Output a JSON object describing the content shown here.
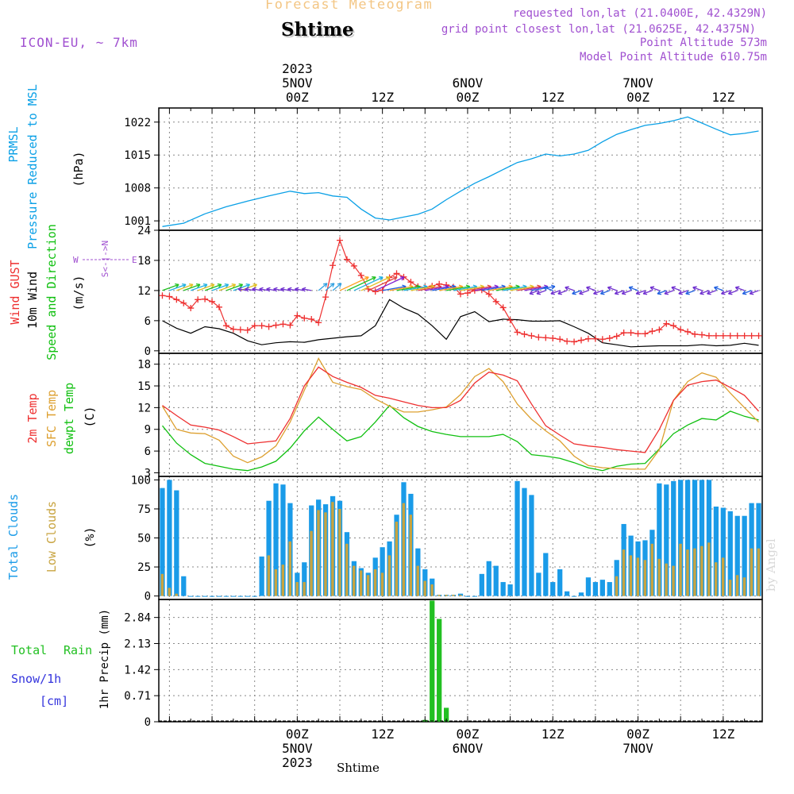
{
  "header": {
    "title": "Forecast Meteogram",
    "location": "Shtime",
    "model": "ICON-EU, ~ 7km",
    "requested": "requested lon,lat (21.0400E, 42.4329N)",
    "grid_point": "grid point closest lon,lat (21.0625E, 42.4375N)",
    "point_altitude": "Point Altitude 573m",
    "model_altitude": "Model Point Altitude 610.75m",
    "watermark": "by Angel",
    "bottom_label": "Shtime"
  },
  "time_axis": {
    "top_labels": [
      {
        "h": 0,
        "lines": [
          "2023",
          "5NOV",
          "00Z"
        ]
      },
      {
        "h": 12,
        "lines": [
          "12Z"
        ]
      },
      {
        "h": 24,
        "lines": [
          "6NOV",
          "00Z"
        ]
      },
      {
        "h": 36,
        "lines": [
          "12Z"
        ]
      },
      {
        "h": 48,
        "lines": [
          "7NOV",
          "00Z"
        ]
      },
      {
        "h": 60,
        "lines": [
          "12Z"
        ]
      }
    ],
    "bottom_labels": [
      {
        "h": 0,
        "lines": [
          "00Z",
          "5NOV",
          "2023"
        ]
      },
      {
        "h": 12,
        "lines": [
          "12Z"
        ]
      },
      {
        "h": 24,
        "lines": [
          "00Z",
          "6NOV"
        ]
      },
      {
        "h": 36,
        "lines": [
          "12Z"
        ]
      },
      {
        "h": 48,
        "lines": [
          "00Z",
          "7NOV"
        ]
      },
      {
        "h": 60,
        "lines": [
          "12Z"
        ]
      }
    ]
  },
  "panel_labels": {
    "pressure": {
      "l1": "PRMSL",
      "l2": "Pressure Reduced to MSL",
      "unit": "(hPa)"
    },
    "wind": {
      "gust": "Wind GUST",
      "wind10m": "10m Wind",
      "speed_dir": "Speed and Direction",
      "unit": "(m/s)",
      "compass_ns": "S<-|->N",
      "compass_w": "W",
      "compass_e": "E"
    },
    "temp": {
      "t2m": "2m Temp",
      "sfc": "SFC Temp",
      "dewpt": "dewpt Temp",
      "unit": "(C)"
    },
    "clouds": {
      "total": "Total Clouds",
      "low": "Low Clouds",
      "unit": "(%)"
    },
    "precip": {
      "rain": "Total Rain",
      "snow": "Snow/1h",
      "cm": "[cm]",
      "ylabel": "1hr Precip (mm)"
    }
  },
  "colors": {
    "pressure": "#0aa0e6",
    "gust": "#ee3030",
    "wind": "#000000",
    "t2m": "#ee3030",
    "sfc": "#dda030",
    "dewpt": "#10c010",
    "total_cloud": "#1a9be8",
    "low_cloud": "#c8a440",
    "precip": "#22c022",
    "header_title": "#f3c684",
    "info": "#a050d0",
    "snow": "#3333dd"
  },
  "chart_data": [
    {
      "id": "pressure",
      "type": "line",
      "ylabel": "(hPa)",
      "x_range": [
        -19.5,
        65.5
      ],
      "ylim": [
        999,
        1025
      ],
      "yticks": [
        1001,
        1008,
        1015,
        1022
      ],
      "series": [
        {
          "name": "PRMSL",
          "x": [
            -19,
            -16,
            -13,
            -10,
            -7,
            -4,
            -1,
            1,
            3,
            5,
            7,
            9,
            11,
            13,
            15,
            17,
            19,
            21,
            23,
            25,
            27,
            29,
            31,
            33,
            35,
            37,
            39,
            41,
            43,
            45,
            47,
            49,
            51,
            53,
            55,
            57,
            59,
            61,
            63,
            65
          ],
          "y": [
            999.8,
            1000.5,
            1002.5,
            1004.0,
            1005.2,
            1006.3,
            1007.3,
            1006.8,
            1007.0,
            1006.3,
            1006.0,
            1003.5,
            1001.6,
            1001.2,
            1001.8,
            1002.4,
            1003.5,
            1005.5,
            1007.3,
            1009.0,
            1010.4,
            1011.9,
            1013.4,
            1014.2,
            1015.2,
            1014.8,
            1015.2,
            1016.0,
            1017.8,
            1019.4,
            1020.4,
            1021.3,
            1021.7,
            1022.3,
            1023.1,
            1021.8,
            1020.5,
            1019.3,
            1019.6,
            1020.1
          ]
        }
      ]
    },
    {
      "id": "wind",
      "type": "line",
      "ylabel": "(m/s)",
      "x_range": [
        -19.5,
        65.5
      ],
      "ylim": [
        -0.5,
        24
      ],
      "yticks": [
        0,
        6,
        12,
        18,
        24
      ],
      "series": [
        {
          "name": "Wind GUST",
          "x": [
            -19,
            -18,
            -17,
            -16,
            -15,
            -14,
            -13,
            -12,
            -11,
            -10,
            -9,
            -8,
            -7,
            -6,
            -5,
            -4,
            -3,
            -2,
            -1,
            0,
            1,
            2,
            3,
            4,
            5,
            6,
            7,
            8,
            9,
            10,
            11,
            12,
            13,
            14,
            15,
            16,
            17,
            18,
            19,
            20,
            21,
            22,
            23,
            24,
            25,
            26,
            27,
            28,
            29,
            30,
            31,
            32,
            33,
            34,
            35,
            36,
            37,
            38,
            39,
            40,
            41,
            42,
            43,
            44,
            45,
            46,
            47,
            48,
            49,
            50,
            51,
            52,
            53,
            54,
            55,
            56,
            57,
            58,
            59,
            60,
            61,
            62,
            63,
            64,
            65
          ],
          "y": [
            11,
            10.8,
            10.2,
            9.5,
            8.5,
            10.2,
            10.3,
            9.8,
            8.7,
            5,
            4.3,
            4.2,
            4.1,
            5,
            5,
            4.8,
            5.1,
            5.3,
            5.1,
            7,
            6.5,
            6.3,
            5.6,
            10.7,
            17,
            22,
            18.2,
            16.9,
            15,
            12.3,
            11.8,
            12.1,
            14.6,
            15.4,
            14.7,
            13.7,
            12.8,
            12.6,
            12.9,
            13.3,
            13.1,
            12.7,
            11.3,
            11.5,
            12,
            12.1,
            11.3,
            9.8,
            8.6,
            6.1,
            3.7,
            3.3,
            3.0,
            2.7,
            2.6,
            2.5,
            2.3,
            1.9,
            1.8,
            2.1,
            2.4,
            2.4,
            2.3,
            2.5,
            2.9,
            3.6,
            3.6,
            3.4,
            3.4,
            3.9,
            4.2,
            5.4,
            5.0,
            4.2,
            3.8,
            3.3,
            3.2,
            3.0,
            3.0,
            3.0,
            3.0,
            3.0,
            3.0,
            3.0,
            3.0
          ]
        },
        {
          "name": "10m Wind",
          "x": [
            -19,
            -17,
            -15,
            -13,
            -11,
            -9,
            -7,
            -5,
            -3,
            -1,
            1,
            3,
            5,
            7,
            9,
            11,
            13,
            15,
            17,
            19,
            21,
            23,
            25,
            27,
            29,
            31,
            33,
            35,
            37,
            39,
            41,
            43,
            45,
            47,
            49,
            51,
            53,
            55,
            57,
            59,
            61,
            63,
            65
          ],
          "y": [
            6,
            4.5,
            3.5,
            4.8,
            4.4,
            3.5,
            2,
            1.2,
            1.6,
            1.8,
            1.7,
            2.2,
            2.5,
            2.8,
            3.0,
            5.0,
            10.2,
            8.5,
            7.3,
            5.0,
            2.3,
            6.8,
            7.8,
            5.8,
            6.3,
            6.2,
            5.9,
            5.9,
            6.0,
            4.8,
            3.5,
            1.6,
            1.2,
            0.8,
            0.9,
            1.0,
            1.0,
            1.0,
            1.2,
            1.0,
            1.1,
            1.5,
            1.1
          ]
        }
      ]
    },
    {
      "id": "temperature",
      "type": "line",
      "ylabel": "(C)",
      "x_range": [
        -19.5,
        65.5
      ],
      "ylim": [
        2.5,
        19.5
      ],
      "yticks": [
        3,
        6,
        9,
        12,
        15,
        18
      ],
      "series": [
        {
          "name": "2m Temp",
          "x": [
            -19,
            -17,
            -15,
            -13,
            -11,
            -9,
            -7,
            -5,
            -3,
            -1,
            1,
            3,
            5,
            7,
            9,
            11,
            13,
            15,
            17,
            19,
            21,
            23,
            25,
            27,
            29,
            31,
            33,
            35,
            37,
            39,
            41,
            43,
            45,
            47,
            49,
            51,
            53,
            55,
            57,
            59,
            61,
            63,
            65
          ],
          "y": [
            12.3,
            10.9,
            9.6,
            9.3,
            8.9,
            8.0,
            7.0,
            7.2,
            7.4,
            10.5,
            15.0,
            17.6,
            16.3,
            15.5,
            14.8,
            13.7,
            13.3,
            12.8,
            12.3,
            12.0,
            12.0,
            13.0,
            15.4,
            16.9,
            16.5,
            15.7,
            12.5,
            9.5,
            8.2,
            7.0,
            6.7,
            6.5,
            6.2,
            6.0,
            5.8,
            9.0,
            13.0,
            15.1,
            15.6,
            15.8,
            14.8,
            13.7,
            11.5
          ]
        },
        {
          "name": "SFC Temp",
          "x": [
            -19,
            -17,
            -15,
            -13,
            -11,
            -9,
            -7,
            -5,
            -3,
            -1,
            1,
            3,
            5,
            7,
            9,
            11,
            13,
            15,
            17,
            19,
            21,
            23,
            25,
            27,
            29,
            31,
            33,
            35,
            37,
            39,
            41,
            43,
            45,
            47,
            49,
            51,
            53,
            55,
            57,
            59,
            61,
            63,
            65
          ],
          "y": [
            12.2,
            9.0,
            8.5,
            8.4,
            7.5,
            5.3,
            4.4,
            5.2,
            6.7,
            10.0,
            14.4,
            18.8,
            15.5,
            14.9,
            14.5,
            13.2,
            12.2,
            11.4,
            11.4,
            11.7,
            12.1,
            13.8,
            16.3,
            17.4,
            15.6,
            12.5,
            10.4,
            8.8,
            7.4,
            5.3,
            4.0,
            3.7,
            3.6,
            3.5,
            3.5,
            6.2,
            13.0,
            15.6,
            16.8,
            16.2,
            14.0,
            12.0,
            10.0
          ]
        },
        {
          "name": "dewpt Temp",
          "x": [
            -19,
            -17,
            -15,
            -13,
            -11,
            -9,
            -7,
            -5,
            -3,
            -1,
            1,
            3,
            5,
            7,
            9,
            11,
            13,
            15,
            17,
            19,
            21,
            23,
            25,
            27,
            29,
            31,
            33,
            35,
            37,
            39,
            41,
            43,
            45,
            47,
            49,
            51,
            53,
            55,
            57,
            59,
            61,
            63,
            65
          ],
          "y": [
            9.5,
            7.1,
            5.5,
            4.3,
            3.9,
            3.5,
            3.3,
            3.8,
            4.6,
            6.4,
            8.8,
            10.7,
            9.0,
            7.4,
            8.0,
            10.0,
            12.3,
            10.6,
            9.4,
            8.7,
            8.3,
            8.0,
            8.0,
            8.0,
            8.3,
            7.3,
            5.5,
            5.3,
            5.0,
            4.4,
            3.7,
            3.3,
            3.9,
            4.2,
            4.3,
            6.3,
            8.4,
            9.6,
            10.5,
            10.3,
            11.5,
            10.8,
            10.3
          ]
        }
      ]
    },
    {
      "id": "clouds",
      "type": "bar",
      "ylabel": "(%)",
      "x_range": [
        -19.5,
        65.5
      ],
      "ylim": [
        -3,
        103
      ],
      "yticks": [
        0,
        25,
        50,
        75,
        100
      ],
      "x": [
        -19,
        -18,
        -17,
        -16,
        -15,
        -14,
        -13,
        -12,
        -11,
        -10,
        -9,
        -8,
        -7,
        -6,
        -5,
        -4,
        -3,
        -2,
        -1,
        0,
        1,
        2,
        3,
        4,
        5,
        6,
        7,
        8,
        9,
        10,
        11,
        12,
        13,
        14,
        15,
        16,
        17,
        18,
        19,
        20,
        21,
        22,
        23,
        24,
        25,
        26,
        27,
        28,
        29,
        30,
        31,
        32,
        33,
        34,
        35,
        36,
        37,
        38,
        39,
        40,
        41,
        42,
        43,
        44,
        45,
        46,
        47,
        48,
        49,
        50,
        51,
        52,
        53,
        54,
        55,
        56,
        57,
        58,
        59,
        60,
        61,
        62,
        63,
        64,
        65
      ],
      "series": [
        {
          "name": "Total Clouds",
          "values": [
            93,
            100,
            91,
            17,
            0,
            0,
            0,
            0,
            0,
            0,
            0,
            0,
            0,
            0,
            34,
            82,
            97,
            96,
            80,
            20,
            29,
            78,
            83,
            79,
            86,
            82,
            55,
            30,
            24,
            20,
            33,
            42,
            47,
            70,
            98,
            88,
            41,
            23,
            15,
            1,
            1,
            1,
            2,
            0,
            0,
            19,
            30,
            26,
            12,
            10,
            99,
            93,
            87,
            20,
            37,
            12,
            23,
            4,
            0,
            3,
            16,
            12,
            14,
            12,
            31,
            62,
            52,
            47,
            48,
            57,
            97,
            96,
            99,
            100,
            100,
            100,
            100,
            100,
            77,
            76,
            73,
            69,
            69,
            80,
            80
          ]
        },
        {
          "name": "Low Clouds",
          "values": [
            19,
            7,
            2,
            0,
            0,
            0,
            0,
            0,
            0,
            0,
            0,
            0,
            0,
            0,
            0,
            35,
            23,
            27,
            47,
            12,
            12,
            56,
            74,
            72,
            81,
            75,
            45,
            26,
            22,
            18,
            23,
            20,
            35,
            64,
            80,
            70,
            26,
            13,
            10,
            1,
            1,
            1,
            1,
            0,
            0,
            0,
            0,
            0,
            0,
            0,
            0,
            0,
            0,
            0,
            0,
            0,
            0,
            0,
            0,
            0,
            0,
            0,
            0,
            0,
            17,
            40,
            35,
            33,
            31,
            45,
            32,
            28,
            26,
            45,
            40,
            41,
            43,
            46,
            29,
            33,
            14,
            18,
            16,
            41,
            41
          ]
        }
      ]
    },
    {
      "id": "precip",
      "type": "bar",
      "ylabel": "1hr Precip (mm)",
      "x_range": [
        -19.5,
        65.5
      ],
      "ylim": [
        0,
        3.33
      ],
      "yticks": [
        0,
        0.71,
        1.42,
        2.13,
        2.84
      ],
      "x": [
        18,
        19,
        20,
        21
      ],
      "series": [
        {
          "name": "Total Rain",
          "values": [
            0.05,
            3.3,
            2.8,
            0.38
          ]
        }
      ]
    }
  ]
}
